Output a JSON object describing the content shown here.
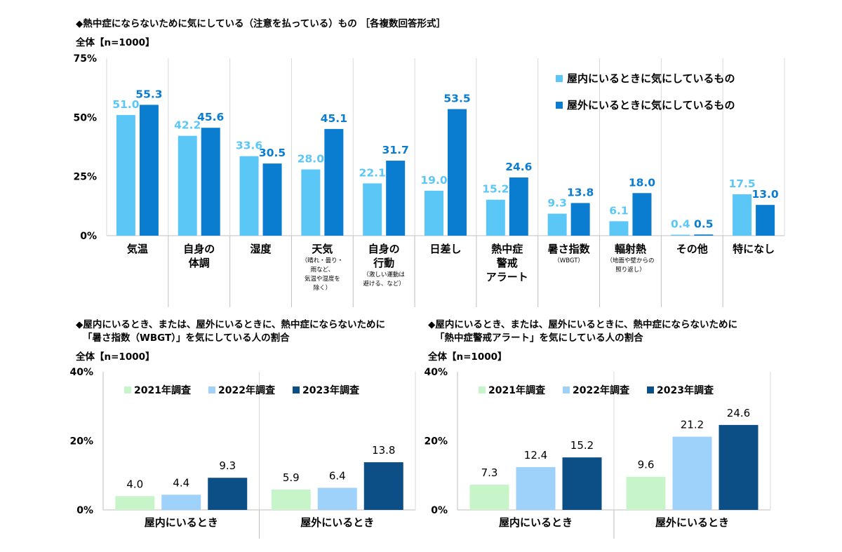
{
  "colors": {
    "indoor": "#5BC7F6",
    "outdoor": "#0A7DD0",
    "y2021": "#C7F5C9",
    "y2022": "#9FD2FB",
    "y2023": "#0B4F86"
  },
  "chart_data": [
    {
      "type": "bar",
      "title": "◆熱中症にならないために気にしている（注意を払っている）もの ［各複数回答形式］",
      "subtitle": "全体【n=1000】",
      "yticks": [
        "0%",
        "25%",
        "50%",
        "75%"
      ],
      "ylim": [
        0,
        75
      ],
      "grid": false,
      "legend_position": "top-right",
      "categories": [
        {
          "label": [
            "気温"
          ],
          "note": []
        },
        {
          "label": [
            "自身の",
            "体調"
          ],
          "note": []
        },
        {
          "label": [
            "湿度"
          ],
          "note": []
        },
        {
          "label": [
            "天気"
          ],
          "note": [
            "（晴れ・曇り・",
            "雨など、",
            "気温や湿度を",
            "除く）"
          ]
        },
        {
          "label": [
            "自身の",
            "行動"
          ],
          "note": [
            "（激しい運動は",
            "避ける、など）"
          ]
        },
        {
          "label": [
            "日差し"
          ],
          "note": []
        },
        {
          "label": [
            "熱中症",
            "警戒",
            "アラート"
          ],
          "note": []
        },
        {
          "label": [
            "暑さ指数"
          ],
          "note": [
            "（WBGT）"
          ]
        },
        {
          "label": [
            "輻射熱"
          ],
          "note": [
            "（地面や壁からの",
            "照り返し）"
          ]
        },
        {
          "label": [
            "その他"
          ],
          "note": []
        },
        {
          "label": [
            "特になし"
          ],
          "note": []
        }
      ],
      "series": [
        {
          "name": "屋内にいるときに気にしているもの",
          "color_key": "indoor",
          "values": [
            51.0,
            42.2,
            33.6,
            28.0,
            22.1,
            19.0,
            15.2,
            9.3,
            6.1,
            0.4,
            17.5
          ],
          "labels": [
            "51.0",
            "42.2",
            "33.6",
            "28.0",
            "22.1",
            "19.0",
            "15.2",
            "9.3",
            "6.1",
            "0.4",
            "17.5"
          ]
        },
        {
          "name": "屋外にいるときに気にしているもの",
          "color_key": "outdoor",
          "values": [
            55.3,
            45.6,
            30.5,
            45.1,
            31.7,
            53.5,
            24.6,
            13.8,
            18.0,
            0.5,
            13.0
          ],
          "labels": [
            "55.3",
            "45.6",
            "30.5",
            "45.1",
            "31.7",
            "53.5",
            "24.6",
            "13.8",
            "18.0",
            "0.5",
            "13.0"
          ]
        }
      ]
    },
    {
      "type": "bar",
      "title_lines": [
        "◆屋内にいるとき、または、屋外にいるときに、熱中症にならないために",
        "「暑さ指数（WBGT）」を気にしている人の割合"
      ],
      "subtitle": "全体【n=1000】",
      "yticks": [
        "0%",
        "20%",
        "40%"
      ],
      "ylim": [
        0,
        40
      ],
      "legend_position": "top",
      "categories": [
        {
          "label": [
            "屋内にいるとき"
          ]
        },
        {
          "label": [
            "屋外にいるとき"
          ]
        }
      ],
      "series": [
        {
          "name": "2021年調査",
          "color_key": "y2021",
          "values": [
            4.0,
            5.9
          ],
          "labels": [
            "4.0",
            "5.9"
          ]
        },
        {
          "name": "2022年調査",
          "color_key": "y2022",
          "values": [
            4.4,
            6.4
          ],
          "labels": [
            "4.4",
            "6.4"
          ]
        },
        {
          "name": "2023年調査",
          "color_key": "y2023",
          "values": [
            9.3,
            13.8
          ],
          "labels": [
            "9.3",
            "13.8"
          ]
        }
      ]
    },
    {
      "type": "bar",
      "title_lines": [
        "◆屋内にいるとき、または、屋外にいるときに、熱中症にならないために",
        "「熱中症警戒アラート」を気にしている人の割合"
      ],
      "subtitle": "全体【n=1000】",
      "yticks": [
        "0%",
        "20%",
        "40%"
      ],
      "ylim": [
        0,
        40
      ],
      "legend_position": "top",
      "categories": [
        {
          "label": [
            "屋内にいるとき"
          ]
        },
        {
          "label": [
            "屋外にいるとき"
          ]
        }
      ],
      "series": [
        {
          "name": "2021年調査",
          "color_key": "y2021",
          "values": [
            7.3,
            9.6
          ],
          "labels": [
            "7.3",
            "9.6"
          ]
        },
        {
          "name": "2022年調査",
          "color_key": "y2022",
          "values": [
            12.4,
            21.2
          ],
          "labels": [
            "12.4",
            "21.2"
          ]
        },
        {
          "name": "2023年調査",
          "color_key": "y2023",
          "values": [
            15.2,
            24.6
          ],
          "labels": [
            "15.2",
            "24.6"
          ]
        }
      ]
    }
  ]
}
